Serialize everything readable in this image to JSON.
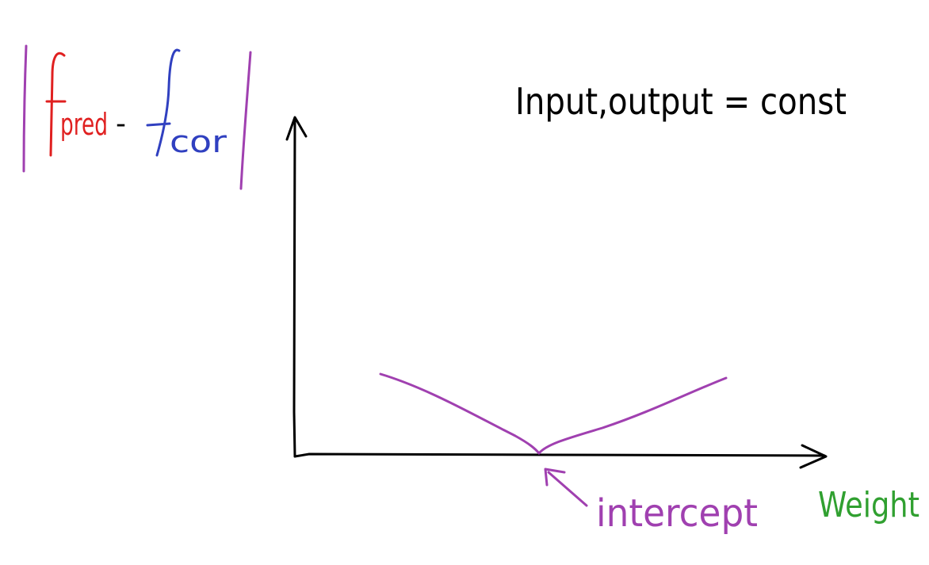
{
  "diagram": {
    "y_label": {
      "open_bar": "|",
      "f_pred": "f",
      "pred_sub": "pred",
      "minus": "-",
      "f_cor": "f",
      "cor_sub": "cor",
      "close_bar": "|"
    },
    "condition": "Input,output = const",
    "x_label": "Weight",
    "annotation": "intercept",
    "colors": {
      "axis": "#000000",
      "curve": "#a040b0",
      "pred": "#e02020",
      "cor": "#3040c0",
      "weight": "#30a030",
      "text": "#000000"
    }
  }
}
